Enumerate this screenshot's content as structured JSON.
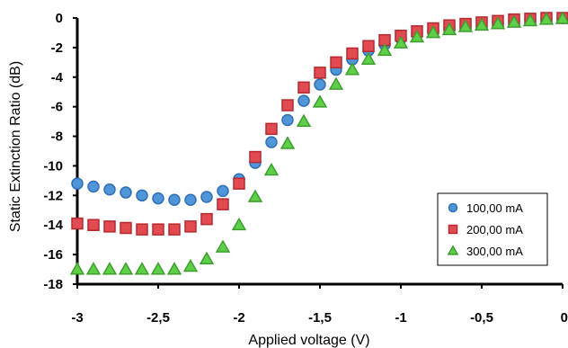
{
  "chart_data": {
    "type": "scatter",
    "xlabel": "Applied voltage (V)",
    "ylabel": "Static Extinction Ratio (dB)",
    "xlim": [
      -3,
      0
    ],
    "ylim": [
      -18,
      0
    ],
    "x_ticks": [
      "-3",
      "-2,5",
      "-2",
      "-1,5",
      "-1",
      "-0,5",
      "0"
    ],
    "y_ticks": [
      "0",
      "-2",
      "-4",
      "-6",
      "-8",
      "-10",
      "-12",
      "-14",
      "-16",
      "-18"
    ],
    "x_tick_values": [
      -3,
      -2.5,
      -2,
      -1.5,
      -1,
      -0.5,
      0
    ],
    "y_tick_values": [
      0,
      -2,
      -4,
      -6,
      -8,
      -10,
      -12,
      -14,
      -16,
      -18
    ],
    "legend_position": "bottom-right",
    "x": [
      -3.0,
      -2.9,
      -2.8,
      -2.7,
      -2.6,
      -2.5,
      -2.4,
      -2.3,
      -2.2,
      -2.1,
      -2.0,
      -1.9,
      -1.8,
      -1.7,
      -1.6,
      -1.5,
      -1.4,
      -1.3,
      -1.2,
      -1.1,
      -1.0,
      -0.9,
      -0.8,
      -0.7,
      -0.6,
      -0.5,
      -0.4,
      -0.3,
      -0.2,
      -0.1,
      0.0
    ],
    "series": [
      {
        "name": "100,00 mA",
        "marker": "circle",
        "fill": "#4f95d8",
        "stroke": "#2e6fb5",
        "values": [
          -11.2,
          -11.4,
          -11.6,
          -11.8,
          -12.0,
          -12.2,
          -12.3,
          -12.3,
          -12.1,
          -11.7,
          -10.9,
          -9.8,
          -8.4,
          -6.9,
          -5.6,
          -4.5,
          -3.5,
          -2.8,
          -2.2,
          -1.8,
          -1.4,
          -1.1,
          -0.9,
          -0.7,
          -0.5,
          -0.4,
          -0.3,
          -0.2,
          -0.1,
          -0.05,
          0.0
        ]
      },
      {
        "name": "200,00 mA",
        "marker": "square",
        "fill": "#e04a50",
        "stroke": "#b52a30",
        "values": [
          -13.9,
          -14.0,
          -14.1,
          -14.2,
          -14.3,
          -14.3,
          -14.3,
          -14.1,
          -13.6,
          -12.6,
          -11.2,
          -9.4,
          -7.5,
          -5.9,
          -4.7,
          -3.7,
          -3.0,
          -2.4,
          -1.9,
          -1.5,
          -1.2,
          -0.9,
          -0.7,
          -0.5,
          -0.4,
          -0.3,
          -0.2,
          -0.1,
          -0.05,
          0.0,
          0.0
        ]
      },
      {
        "name": "300,00 mA",
        "marker": "triangle",
        "fill": "#5fcf4a",
        "stroke": "#3d9e2e",
        "values": [
          -17.0,
          -17.0,
          -17.0,
          -17.0,
          -17.0,
          -17.0,
          -17.0,
          -16.8,
          -16.3,
          -15.5,
          -14.0,
          -12.1,
          -10.3,
          -8.5,
          -7.0,
          -5.7,
          -4.5,
          -3.5,
          -2.8,
          -2.2,
          -1.7,
          -1.3,
          -1.0,
          -0.8,
          -0.6,
          -0.5,
          -0.4,
          -0.3,
          -0.2,
          -0.1,
          -0.05
        ]
      }
    ]
  }
}
